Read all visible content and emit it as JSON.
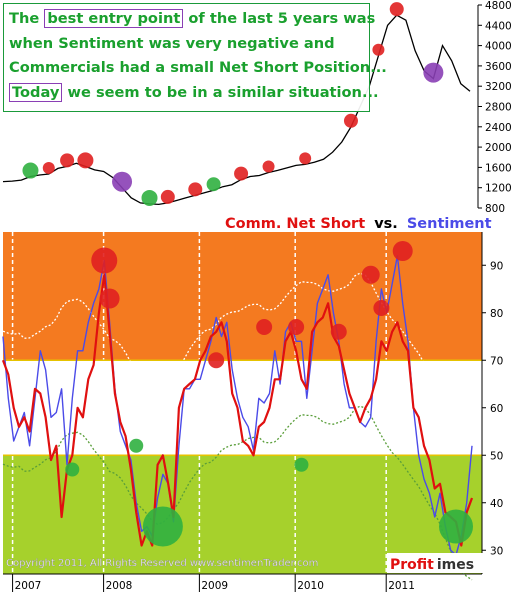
{
  "annotation": {
    "line1_hl": "best entry point",
    "line1_pre": "The ",
    "line1_post": " of the last 5 years was",
    "line2": "when Sentiment was very negative and",
    "line3": "Commercials had a small Net Short Position...",
    "line4_hl": "Today",
    "line4_post": " we seem to be in a similar situation..."
  },
  "colors": {
    "zone_high": "#f47a20",
    "zone_mid": "#ffffff",
    "zone_low": "#a6d12c",
    "net_short": "#e01010",
    "sentiment": "#4b4be8",
    "price": "#000000",
    "mark_red": "#e02020",
    "mark_green": "#30b040",
    "mark_purple": "#8a3fb5"
  },
  "chart_data": [
    {
      "type": "line",
      "series": [
        {
          "values": [
            1320,
            1330,
            1350,
            1420,
            1450,
            1470,
            1580,
            1620,
            1680,
            1620,
            1550,
            1520,
            1400,
            1200,
            1000,
            900,
            880,
            870,
            900,
            950,
            1000,
            1050,
            1100,
            1150,
            1220,
            1260,
            1360,
            1420,
            1440,
            1500,
            1540,
            1590,
            1640,
            1660,
            1700,
            1760,
            1900,
            2100,
            2400,
            2800,
            3200,
            3800,
            4400,
            4600,
            4500,
            3900,
            3500,
            3350,
            4000,
            3700,
            3250,
            3100
          ]
        }
      ],
      "yticks": [
        "4800",
        "4400",
        "4000",
        "3600",
        "3200",
        "2800",
        "2400",
        "2000",
        "1600",
        "1200",
        "800"
      ],
      "ylim": [
        800,
        4800
      ]
    },
    {
      "type": "line",
      "title_part1": "Comm. Net Short",
      "title_part2": "vs.",
      "title_part3": "Sentiment",
      "series": [
        {
          "name": "Comm. Net Short",
          "values": [
            70,
            67,
            60,
            56,
            58,
            55,
            64,
            63,
            58,
            49,
            52,
            37,
            47,
            50,
            60,
            58,
            66,
            69,
            80,
            88,
            76,
            63,
            57,
            54,
            47,
            38,
            31,
            34,
            31,
            48,
            50,
            44,
            37,
            60,
            64,
            65,
            66,
            70,
            72,
            75,
            76,
            78,
            74,
            63,
            60,
            53,
            52,
            50,
            56,
            57,
            60,
            66,
            66,
            74,
            76,
            72,
            66,
            64,
            76,
            78,
            79,
            82,
            75,
            73,
            68,
            63,
            60,
            57,
            60,
            62,
            66,
            74,
            72,
            76,
            78,
            74,
            72,
            60,
            58,
            52,
            49,
            43,
            44,
            38,
            37,
            36,
            31,
            38,
            41
          ]
        },
        {
          "name": "Sentiment",
          "values": [
            75,
            62,
            53,
            56,
            59,
            52,
            62,
            72,
            68,
            58,
            59,
            64,
            48,
            62,
            72,
            72,
            78,
            82,
            85,
            91,
            78,
            64,
            55,
            52,
            49,
            40,
            34,
            35,
            33,
            41,
            46,
            44,
            36,
            52,
            64,
            64,
            66,
            66,
            70,
            74,
            79,
            75,
            78,
            68,
            62,
            58,
            56,
            51,
            62,
            61,
            63,
            72,
            65,
            76,
            78,
            74,
            74,
            62,
            72,
            82,
            85,
            88,
            80,
            74,
            65,
            60,
            60,
            57,
            56,
            58,
            74,
            85,
            80,
            86,
            92,
            82,
            74,
            60,
            50,
            45,
            42,
            37,
            42,
            35,
            30,
            29,
            33,
            40,
            52
          ]
        }
      ],
      "yticks": [
        "90",
        "80",
        "70",
        "60",
        "50",
        "40",
        "30"
      ],
      "ylim": [
        25,
        97
      ],
      "zones": [
        {
          "name": "high",
          "range": [
            70,
            97
          ]
        },
        {
          "name": "mid",
          "range": [
            50,
            70
          ]
        },
        {
          "name": "low",
          "range": [
            25,
            50
          ]
        }
      ],
      "xticks": [
        "2007",
        "2008",
        "2009",
        "2010",
        "2011"
      ]
    }
  ],
  "footer": {
    "copyright": "Copyright 2011, All Rights Reserved www.sentimenTrader.com",
    "logo_a": "Profit",
    "logo_b": "imes"
  }
}
